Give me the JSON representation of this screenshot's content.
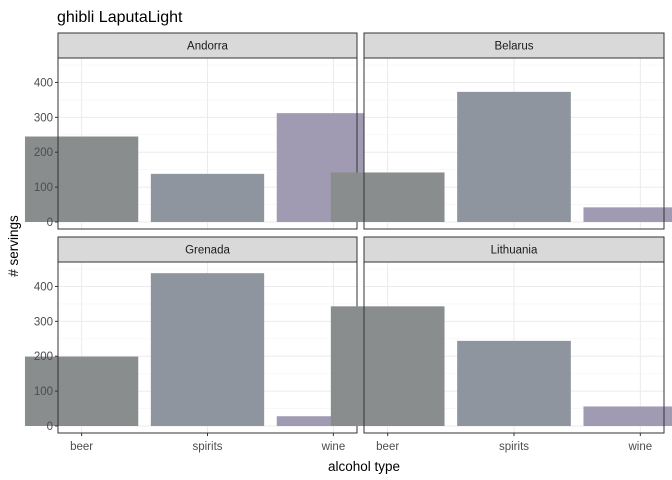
{
  "chart_data": {
    "type": "bar",
    "title": "ghibli LaputaLight",
    "xlabel": "alcohol type",
    "ylabel": "# servings",
    "categories": [
      "beer",
      "spirits",
      "wine"
    ],
    "ylim": [
      0,
      450
    ],
    "yticks": [
      0,
      100,
      200,
      300,
      400
    ],
    "yticklabels": [
      "0",
      "100",
      "200",
      "300",
      "400"
    ],
    "colors": {
      "beer": "#898d8e",
      "spirits": "#8e959f",
      "wine": "#a09bb2"
    },
    "grid": true,
    "facets": [
      {
        "name": "Andorra",
        "values": [
          245,
          138,
          312
        ]
      },
      {
        "name": "Belarus",
        "values": [
          142,
          373,
          42
        ]
      },
      {
        "name": "Grenada",
        "values": [
          199,
          438,
          28
        ]
      },
      {
        "name": "Lithuania",
        "values": [
          343,
          244,
          56
        ]
      }
    ]
  }
}
